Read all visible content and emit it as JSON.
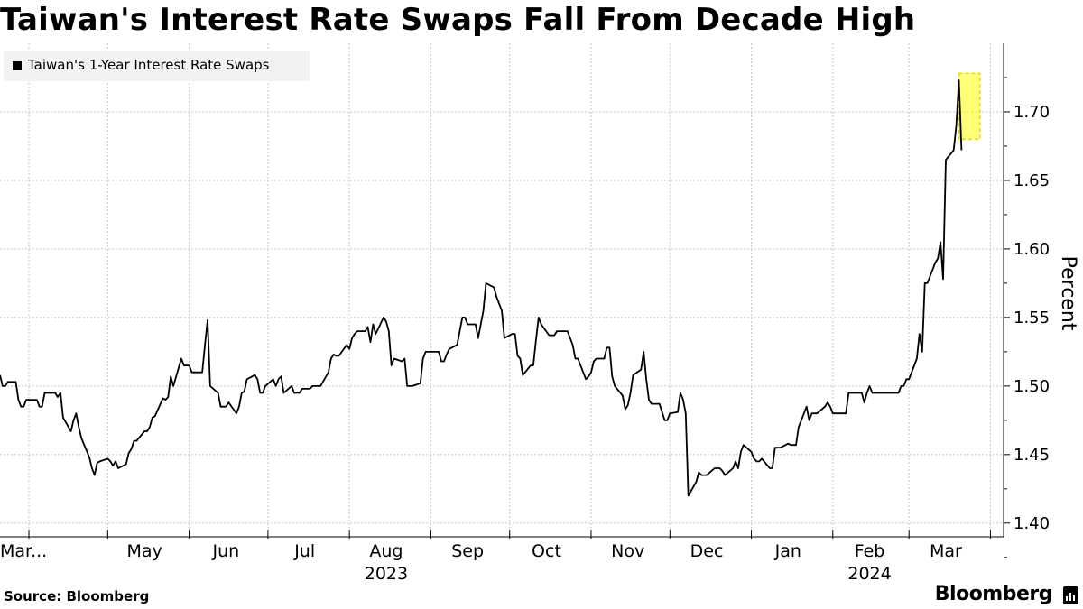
{
  "title": "Taiwan's Interest Rate Swaps Fall From Decade High",
  "source": "Source: Bloomberg",
  "brand": "Bloomberg",
  "chart_data": {
    "type": "line",
    "title": "Taiwan's Interest Rate Swaps Fall From Decade High",
    "series": [
      {
        "name": "Taiwan's 1-Year Interest Rate Swaps",
        "color": "#000000",
        "start": "2023-03-21",
        "frequency": "business days",
        "values": [
          1.508,
          1.5,
          1.5,
          1.503,
          1.503,
          1.49,
          1.485,
          1.485,
          1.49,
          1.49,
          1.49,
          1.485,
          1.485,
          1.495,
          1.495,
          1.495,
          1.492,
          1.495,
          1.477,
          1.467,
          1.475,
          1.48,
          1.47,
          1.462,
          1.448,
          1.44,
          1.435,
          1.444,
          1.445,
          1.447,
          1.445,
          1.442,
          1.445,
          1.44,
          1.443,
          1.451,
          1.454,
          1.46,
          1.46,
          1.467,
          1.467,
          1.47,
          1.477,
          1.478,
          1.491,
          1.49,
          1.492,
          1.507,
          1.5,
          1.52,
          1.515,
          1.515,
          1.515,
          1.51,
          1.51,
          1.51,
          1.53,
          1.548,
          1.5,
          1.495,
          1.485,
          1.485,
          1.485,
          1.488,
          1.48,
          1.485,
          1.495,
          1.496,
          1.505,
          1.508,
          1.505,
          1.495,
          1.495,
          1.5,
          1.505,
          1.5,
          1.505,
          1.507,
          1.495,
          1.5,
          1.495,
          1.495,
          1.495,
          1.498,
          1.498,
          1.5,
          1.5,
          1.5,
          1.5,
          1.51,
          1.52,
          1.523,
          1.522,
          1.522,
          1.53,
          1.527,
          1.535,
          1.538,
          1.54,
          1.54,
          1.543,
          1.532,
          1.545,
          1.538,
          1.55,
          1.547,
          1.54,
          1.515,
          1.52,
          1.518,
          1.52,
          1.5,
          1.5,
          1.5,
          1.502,
          1.52,
          1.525,
          1.525,
          1.525,
          1.525,
          1.518,
          1.518,
          1.523,
          1.527,
          1.53,
          1.54,
          1.55,
          1.55,
          1.545,
          1.545,
          1.535,
          1.545,
          1.555,
          1.575,
          1.572,
          1.565,
          1.56,
          1.555,
          1.535,
          1.538,
          1.538,
          1.522,
          1.52,
          1.508,
          1.515,
          1.515,
          1.533,
          1.55,
          1.545,
          1.537,
          1.537,
          1.537,
          1.54,
          1.54,
          1.54,
          1.535,
          1.53,
          1.52,
          1.52,
          1.505,
          1.507,
          1.51,
          1.518,
          1.52,
          1.52,
          1.528,
          1.528,
          1.507,
          1.5,
          1.493,
          1.483,
          1.486,
          1.495,
          1.508,
          1.512,
          1.525,
          1.505,
          1.49,
          1.487,
          1.487,
          1.481,
          1.475,
          1.475,
          1.48,
          1.481,
          1.495,
          1.49,
          1.48,
          1.42,
          1.43,
          1.437,
          1.435,
          1.435,
          1.435,
          1.44,
          1.44,
          1.44,
          1.438,
          1.435,
          1.44,
          1.445,
          1.44,
          1.452,
          1.457,
          1.452,
          1.447,
          1.445,
          1.445,
          1.447,
          1.44,
          1.44,
          1.455,
          1.455,
          1.455,
          1.458,
          1.457,
          1.457,
          1.457,
          1.47,
          1.485,
          1.475,
          1.48,
          1.48,
          1.48,
          1.485,
          1.488,
          1.485,
          1.48,
          1.48,
          1.48,
          1.48,
          1.495,
          1.495,
          1.495,
          1.495,
          1.488,
          1.495,
          1.5,
          1.495,
          1.495,
          1.495,
          1.495,
          1.495,
          1.495,
          1.495,
          1.5,
          1.5,
          1.505,
          1.505,
          1.52,
          1.538,
          1.525,
          1.575,
          1.575,
          1.59,
          1.593,
          1.605,
          1.578,
          1.665,
          1.672,
          1.69,
          1.723,
          1.672
        ]
      }
    ],
    "x_ticks": [
      {
        "label": "Mar...",
        "date": "2023-03-21"
      },
      {
        "label": "May",
        "date": "2023-05-15"
      },
      {
        "label": "Jun",
        "date": "2023-06-15"
      },
      {
        "label": "Jul",
        "date": "2023-07-15"
      },
      {
        "label": "Aug",
        "date": "2023-08-15"
      },
      {
        "label": "Sep",
        "date": "2023-09-15"
      },
      {
        "label": "Oct",
        "date": "2023-10-15"
      },
      {
        "label": "Nov",
        "date": "2023-11-15"
      },
      {
        "label": "Dec",
        "date": "2023-12-15"
      },
      {
        "label": "Jan",
        "date": "2024-01-15"
      },
      {
        "label": "Feb",
        "date": "2024-02-15"
      },
      {
        "label": "Mar",
        "date": "2024-03-15"
      }
    ],
    "x_gridlines": [
      "2023-04-01",
      "2023-05-01",
      "2023-06-01",
      "2023-07-01",
      "2023-08-01",
      "2023-09-01",
      "2023-10-01",
      "2023-11-01",
      "2023-12-01",
      "2024-01-01",
      "2024-02-01",
      "2024-03-01",
      "2024-04-01"
    ],
    "x_end": "2024-04-06",
    "year_labels": [
      {
        "label": "2023",
        "date": "2023-08-15"
      },
      {
        "label": "2024",
        "date": "2024-02-15"
      }
    ],
    "y_ticks": [
      1.4,
      1.45,
      1.5,
      1.55,
      1.6,
      1.65,
      1.7
    ],
    "ylim": [
      1.39,
      1.75
    ],
    "ylabel": "Percent",
    "xlabel": "",
    "grid": true,
    "legend": "top-left",
    "highlight": {
      "color": "#ffff00",
      "start": "2024-03-20",
      "end": "2024-03-28",
      "y_range": [
        1.68,
        1.728
      ]
    }
  }
}
